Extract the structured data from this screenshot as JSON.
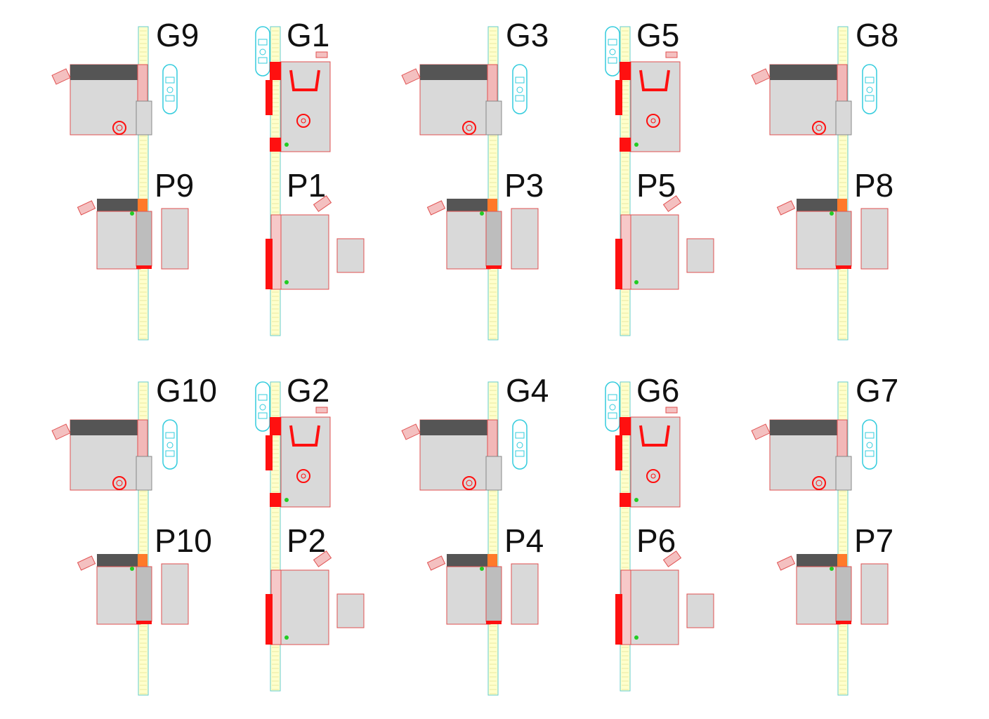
{
  "diagram": {
    "colors": {
      "body": "#d9d9d9",
      "outline": "#e05050",
      "accent": "#ff1010",
      "dark": "#555555",
      "rail": "#ffffcc",
      "rail_edge": "#66cccc",
      "cyan": "#33ccdd",
      "green": "#22cc22"
    },
    "rows": [
      {
        "name": "top",
        "columns": [
          {
            "top": "G9",
            "bottom": "P9",
            "kind": "side"
          },
          {
            "top": "G1",
            "bottom": "P1",
            "kind": "front"
          },
          {
            "top": "G3",
            "bottom": "P3",
            "kind": "side"
          },
          {
            "top": "G5",
            "bottom": "P5",
            "kind": "front"
          },
          {
            "top": "G8",
            "bottom": "P8",
            "kind": "side"
          }
        ]
      },
      {
        "name": "bottom",
        "columns": [
          {
            "top": "G10",
            "bottom": "P10",
            "kind": "side"
          },
          {
            "top": "G2",
            "bottom": "P2",
            "kind": "front"
          },
          {
            "top": "G4",
            "bottom": "P4",
            "kind": "side"
          },
          {
            "top": "G6",
            "bottom": "P6",
            "kind": "front"
          },
          {
            "top": "G7",
            "bottom": "P7",
            "kind": "side"
          }
        ]
      }
    ]
  }
}
